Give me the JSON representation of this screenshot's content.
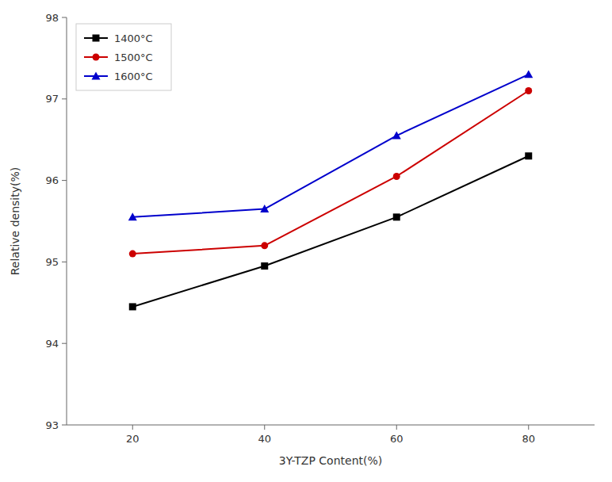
{
  "chart_data": {
    "type": "line",
    "x": [
      20,
      40,
      60,
      80
    ],
    "series": [
      {
        "name": "1400°C",
        "color": "#000000",
        "marker": "square",
        "values": [
          94.45,
          94.95,
          95.55,
          96.3
        ]
      },
      {
        "name": "1500°C",
        "color": "#cc0000",
        "marker": "circle",
        "values": [
          95.1,
          95.2,
          96.05,
          97.1
        ]
      },
      {
        "name": "1600°C",
        "color": "#0000cc",
        "marker": "triangle",
        "values": [
          95.55,
          95.65,
          96.55,
          97.3
        ]
      }
    ],
    "xlabel": "3Y-TZP Content(%)",
    "ylabel": "Relative density(%)",
    "xlim": [
      10,
      90
    ],
    "ylim": [
      93,
      98
    ],
    "xticks": [
      20,
      40,
      60,
      80
    ],
    "yticks": [
      93,
      94,
      95,
      96,
      97,
      98
    ],
    "grid": false,
    "legend": "upper left"
  }
}
